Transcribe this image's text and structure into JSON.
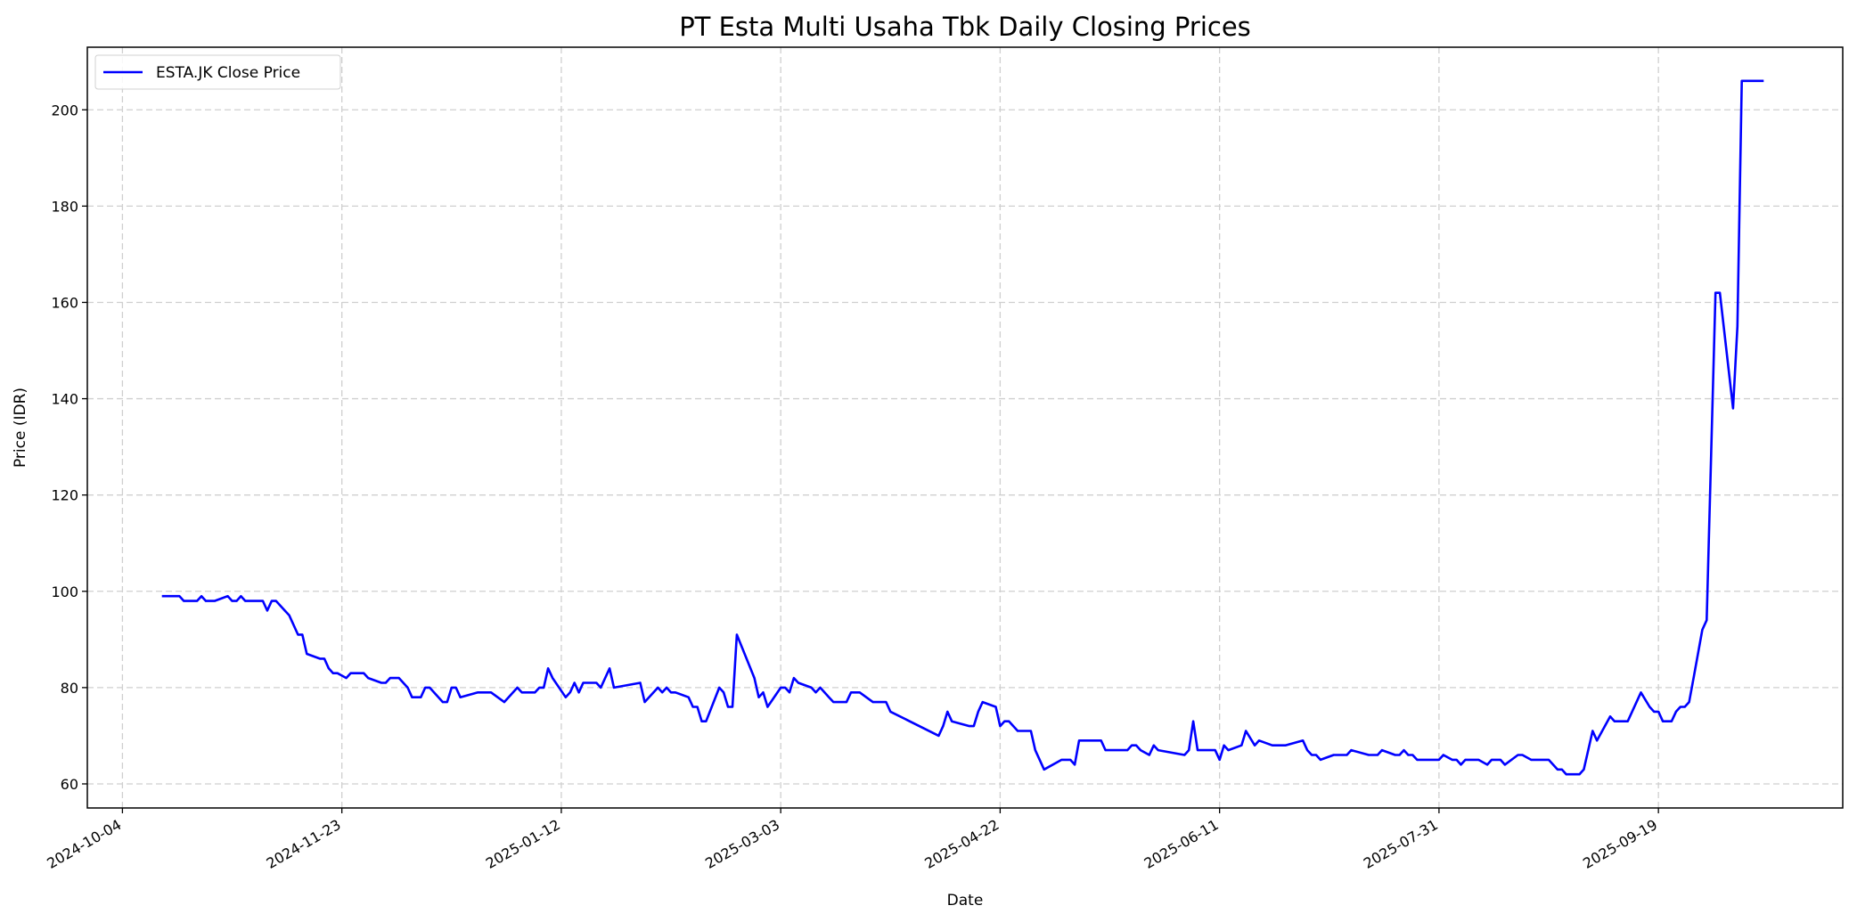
{
  "chart_data": {
    "type": "line",
    "title": "PT Esta Multi Usaha Tbk Daily Closing Prices",
    "xlabel": "Date",
    "ylabel": "Price (IDR)",
    "x_unit": "days since 2024-10-04",
    "x_origin": "2024-10-04",
    "xlim": [
      -8,
      392
    ],
    "ylim": [
      55,
      213
    ],
    "grid": true,
    "legend_position": "top-left",
    "x_ticks": [
      {
        "value": 0,
        "label": "2024-10-04"
      },
      {
        "value": 50,
        "label": "2024-11-23"
      },
      {
        "value": 100,
        "label": "2025-01-12"
      },
      {
        "value": 150,
        "label": "2025-03-03"
      },
      {
        "value": 200,
        "label": "2025-04-22"
      },
      {
        "value": 250,
        "label": "2025-06-11"
      },
      {
        "value": 300,
        "label": "2025-07-31"
      },
      {
        "value": 350,
        "label": "2025-09-19"
      }
    ],
    "y_ticks": [
      {
        "value": 60,
        "label": "60"
      },
      {
        "value": 80,
        "label": "80"
      },
      {
        "value": 100,
        "label": "100"
      },
      {
        "value": 120,
        "label": "120"
      },
      {
        "value": 140,
        "label": "140"
      },
      {
        "value": 160,
        "label": "160"
      },
      {
        "value": 180,
        "label": "180"
      },
      {
        "value": 200,
        "label": "200"
      }
    ],
    "series": [
      {
        "name": "ESTA.JK Close Price",
        "color": "#0000ff",
        "x": [
          9,
          13,
          14,
          17,
          18,
          19,
          21,
          24,
          25,
          26,
          27,
          28,
          32,
          33,
          34,
          35,
          37,
          38,
          40,
          41,
          42,
          45,
          46,
          47,
          48,
          49,
          51,
          52,
          55,
          56,
          59,
          60,
          61,
          63,
          65,
          66,
          68,
          69,
          70,
          73,
          74,
          75,
          76,
          77,
          81,
          84,
          87,
          90,
          91,
          94,
          95,
          96,
          97,
          98,
          101,
          102,
          103,
          104,
          105,
          108,
          109,
          111,
          112,
          118,
          119,
          122,
          123,
          124,
          125,
          126,
          129,
          130,
          131,
          132,
          133,
          136,
          137,
          138,
          139,
          140,
          144,
          145,
          146,
          147,
          150,
          151,
          152,
          153,
          154,
          157,
          158,
          159,
          161,
          162,
          165,
          166,
          168,
          171,
          174,
          175,
          186,
          187,
          188,
          189,
          193,
          194,
          195,
          196,
          199,
          200,
          201,
          202,
          204,
          207,
          208,
          210,
          214,
          216,
          217,
          218,
          223,
          224,
          229,
          230,
          231,
          232,
          234,
          235,
          236,
          242,
          243,
          244,
          245,
          249,
          250,
          251,
          252,
          255,
          256,
          258,
          259,
          262,
          265,
          269,
          270,
          271,
          272,
          273,
          276,
          279,
          280,
          284,
          286,
          287,
          290,
          291,
          292,
          293,
          294,
          295,
          300,
          301,
          303,
          304,
          305,
          306,
          309,
          311,
          312,
          314,
          315,
          318,
          319,
          321,
          325,
          327,
          328,
          329,
          332,
          333,
          335,
          336,
          339,
          340,
          343,
          346,
          348,
          349,
          350,
          351,
          353,
          354,
          355,
          356,
          357,
          358,
          360,
          361,
          363,
          364,
          367,
          368,
          369,
          374
        ],
        "values": [
          99,
          99,
          98,
          98,
          99,
          98,
          98,
          99,
          98,
          98,
          99,
          98,
          98,
          96,
          98,
          98,
          96,
          95,
          91,
          91,
          87,
          86,
          86,
          84,
          83,
          83,
          82,
          83,
          83,
          82,
          81,
          81,
          82,
          82,
          80,
          78,
          78,
          80,
          80,
          77,
          77,
          80,
          80,
          78,
          79,
          79,
          77,
          80,
          79,
          79,
          80,
          80,
          84,
          82,
          78,
          79,
          81,
          79,
          81,
          81,
          80,
          84,
          80,
          81,
          77,
          80,
          79,
          80,
          79,
          79,
          78,
          76,
          76,
          73,
          73,
          80,
          79,
          76,
          76,
          91,
          82,
          78,
          79,
          76,
          80,
          80,
          79,
          82,
          81,
          80,
          79,
          80,
          78,
          77,
          77,
          79,
          79,
          77,
          77,
          75,
          70,
          72,
          75,
          73,
          72,
          72,
          75,
          77,
          76,
          72,
          73,
          73,
          71,
          71,
          67,
          63,
          65,
          65,
          64,
          69,
          69,
          67,
          67,
          68,
          68,
          67,
          66,
          68,
          67,
          66,
          67,
          73,
          67,
          67,
          65,
          68,
          67,
          68,
          71,
          68,
          69,
          68,
          68,
          69,
          67,
          66,
          66,
          65,
          66,
          66,
          67,
          66,
          66,
          67,
          66,
          66,
          67,
          66,
          66,
          65,
          65,
          66,
          65,
          65,
          64,
          65,
          65,
          64,
          65,
          65,
          64,
          66,
          66,
          65,
          65,
          63,
          63,
          62,
          62,
          63,
          71,
          69,
          74,
          73,
          73,
          79,
          76,
          75,
          75,
          73,
          73,
          75,
          76,
          76,
          77,
          82,
          92,
          94,
          162,
          162,
          138,
          155,
          206,
          206
        ]
      }
    ]
  }
}
